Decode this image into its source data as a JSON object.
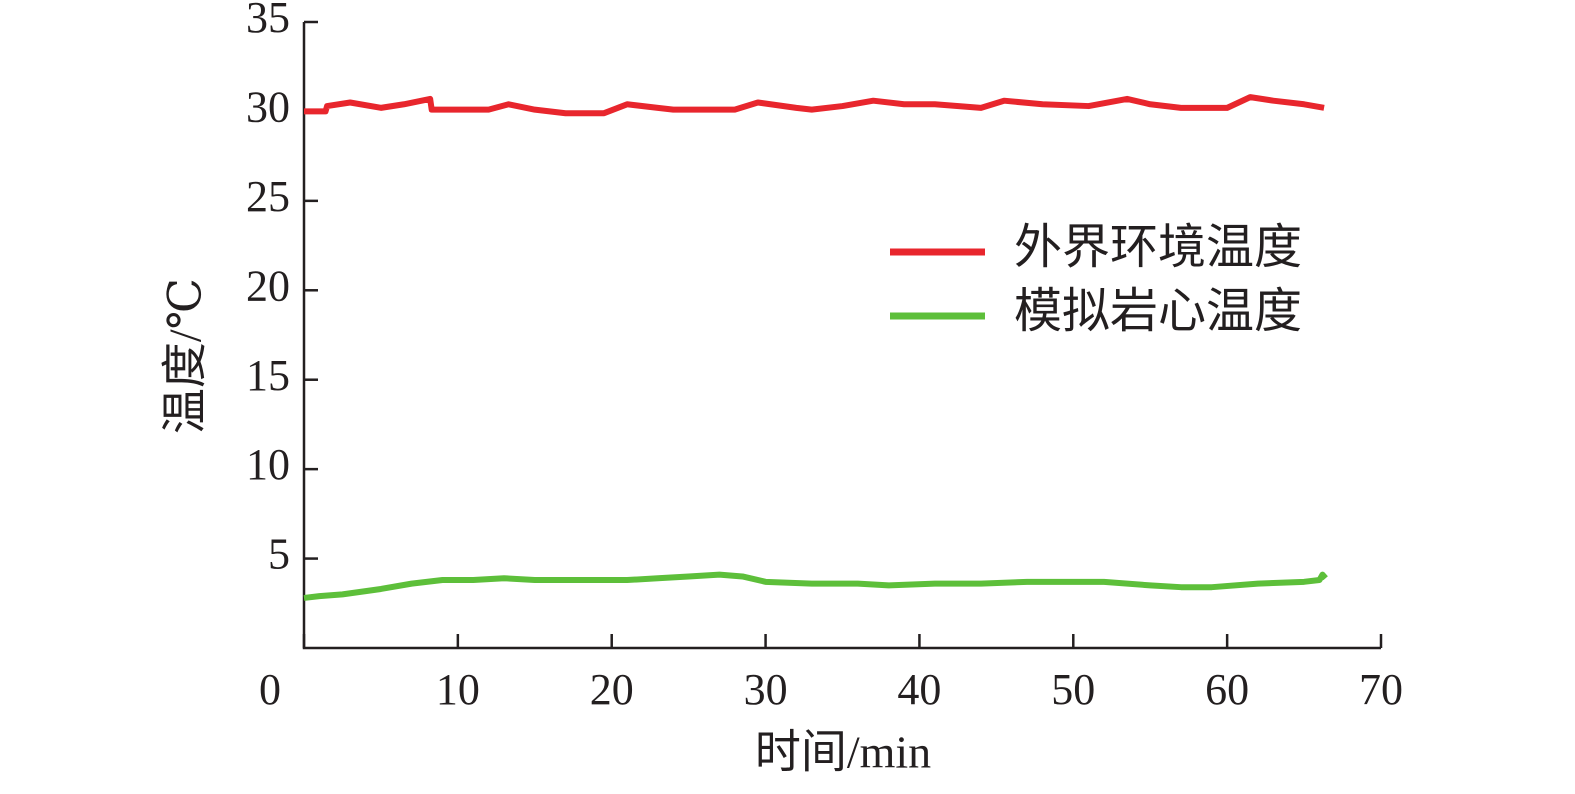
{
  "chart_data": {
    "type": "line",
    "xlabel": "时间/min",
    "ylabel": "温度/℃",
    "xlim": [
      0,
      70
    ],
    "xticks": [
      0,
      10,
      20,
      30,
      40,
      50,
      60,
      70
    ],
    "ylim": [
      0,
      35
    ],
    "yticks": [
      5,
      10,
      15,
      20,
      25,
      30,
      35
    ],
    "legend": "right",
    "series": [
      {
        "name": "外界环境温度",
        "color": "#e8262d",
        "x": [
          0,
          1.4,
          1.5,
          3,
          5,
          6.5,
          8.2,
          8.3,
          12,
          13.3,
          15,
          17,
          19.5,
          21,
          23,
          24,
          28,
          29.5,
          32,
          33,
          35,
          37,
          39,
          41,
          44,
          45.5,
          48,
          51,
          53.5,
          55,
          57,
          60,
          61.5,
          63,
          65,
          66.3
        ],
        "values": [
          30.0,
          30.0,
          30.3,
          30.5,
          30.2,
          30.4,
          30.7,
          30.1,
          30.1,
          30.4,
          30.1,
          29.9,
          29.9,
          30.4,
          30.2,
          30.1,
          30.1,
          30.5,
          30.2,
          30.1,
          30.3,
          30.6,
          30.4,
          30.4,
          30.2,
          30.6,
          30.4,
          30.3,
          30.7,
          30.4,
          30.2,
          30.2,
          30.8,
          30.6,
          30.4,
          30.2
        ]
      },
      {
        "name": "模拟岩心温度",
        "color": "#5dbf3a",
        "x": [
          0,
          1,
          2.5,
          5,
          7,
          9,
          11,
          13,
          15,
          18,
          21,
          23,
          25,
          27,
          28.5,
          30,
          33,
          36,
          38,
          41,
          44,
          47,
          50,
          52,
          55,
          57,
          59,
          62,
          65,
          66,
          66.2,
          66.4
        ],
        "values": [
          2.8,
          2.9,
          3.0,
          3.3,
          3.6,
          3.8,
          3.8,
          3.9,
          3.8,
          3.8,
          3.8,
          3.9,
          4.0,
          4.1,
          4.0,
          3.7,
          3.6,
          3.6,
          3.5,
          3.6,
          3.6,
          3.7,
          3.7,
          3.7,
          3.5,
          3.4,
          3.4,
          3.6,
          3.7,
          3.8,
          4.1,
          3.9
        ]
      }
    ]
  }
}
